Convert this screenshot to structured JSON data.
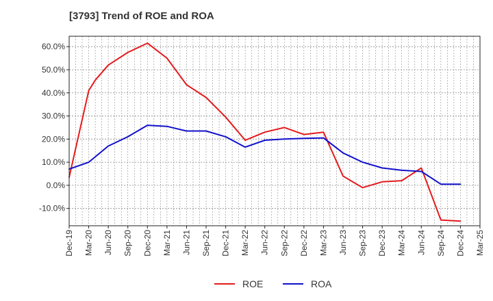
{
  "chart_data": {
    "type": "line",
    "title": "[3793]  Trend of ROE and ROA",
    "xlabel": "",
    "ylabel": "",
    "x_ticks": [
      "Dec-19",
      "Mar-20",
      "Jun-20",
      "Sep-20",
      "Dec-20",
      "Mar-21",
      "Jun-21",
      "Sep-21",
      "Dec-21",
      "Mar-22",
      "Jun-22",
      "Sep-22",
      "Dec-22",
      "Mar-23",
      "Jun-23",
      "Sep-23",
      "Dec-23",
      "Mar-24",
      "Jun-24",
      "Sep-24",
      "Dec-24",
      "Mar-25"
    ],
    "y_ticks": [
      60,
      50,
      40,
      30,
      20,
      10,
      0,
      -10
    ],
    "y_tick_labels": [
      "60.0%",
      "50.0%",
      "40.0%",
      "30.0%",
      "20.0%",
      "10.0%",
      "0.0%",
      "-10.0%"
    ],
    "ylim": [
      -17.5,
      64.5
    ],
    "grid": true,
    "legend_position": "bottom-center",
    "series": [
      {
        "name": "ROE",
        "color": "#e41a1c",
        "points": [
          {
            "x": "Dec-19",
            "y": 3.5
          },
          {
            "x": "Mar-20",
            "y": 41.0
          },
          {
            "x": "Apr-20",
            "y": 45.5
          },
          {
            "x": "Jun-20",
            "y": 52.0
          },
          {
            "x": "Sep-20",
            "y": 57.5
          },
          {
            "x": "Dec-20",
            "y": 61.5
          },
          {
            "x": "Mar-21",
            "y": 55.0
          },
          {
            "x": "Jun-21",
            "y": 43.5
          },
          {
            "x": "Sep-21",
            "y": 38.0
          },
          {
            "x": "Dec-21",
            "y": 29.5
          },
          {
            "x": "Mar-22",
            "y": 19.5
          },
          {
            "x": "Jun-22",
            "y": 23.0
          },
          {
            "x": "Sep-22",
            "y": 25.0
          },
          {
            "x": "Dec-22",
            "y": 22.0
          },
          {
            "x": "Mar-23",
            "y": 23.0
          },
          {
            "x": "Jun-23",
            "y": 4.0
          },
          {
            "x": "Sep-23",
            "y": -1.0
          },
          {
            "x": "Dec-23",
            "y": 1.5
          },
          {
            "x": "Mar-24",
            "y": 2.0
          },
          {
            "x": "Jun-24",
            "y": 7.5
          },
          {
            "x": "Sep-24",
            "y": -15.0
          },
          {
            "x": "Dec-24",
            "y": -15.5
          }
        ]
      },
      {
        "name": "ROA",
        "color": "#1010cc",
        "points": [
          {
            "x": "Dec-19",
            "y": 7.0
          },
          {
            "x": "Mar-20",
            "y": 10.0
          },
          {
            "x": "Jun-20",
            "y": 17.0
          },
          {
            "x": "Sep-20",
            "y": 21.0
          },
          {
            "x": "Dec-20",
            "y": 26.0
          },
          {
            "x": "Mar-21",
            "y": 25.5
          },
          {
            "x": "Jun-21",
            "y": 23.5
          },
          {
            "x": "Sep-21",
            "y": 23.5
          },
          {
            "x": "Dec-21",
            "y": 21.0
          },
          {
            "x": "Mar-22",
            "y": 16.5
          },
          {
            "x": "Jun-22",
            "y": 19.5
          },
          {
            "x": "Sep-22",
            "y": 20.0
          },
          {
            "x": "Dec-22",
            "y": 20.3
          },
          {
            "x": "Mar-23",
            "y": 20.5
          },
          {
            "x": "Jun-23",
            "y": 14.0
          },
          {
            "x": "Sep-23",
            "y": 10.0
          },
          {
            "x": "Dec-23",
            "y": 7.5
          },
          {
            "x": "Mar-24",
            "y": 6.5
          },
          {
            "x": "Jun-24",
            "y": 6.0
          },
          {
            "x": "Sep-24",
            "y": 0.5
          },
          {
            "x": "Dec-24",
            "y": 0.5
          }
        ]
      }
    ]
  }
}
